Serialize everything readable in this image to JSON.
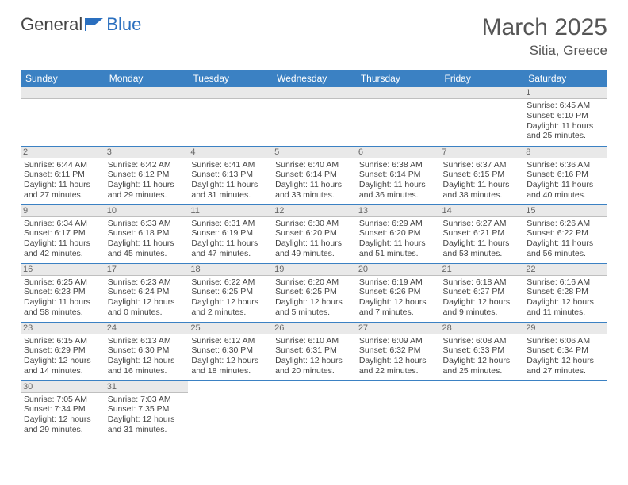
{
  "brand": {
    "name_part1": "General",
    "name_part2": "Blue"
  },
  "title": "March 2025",
  "location": "Sitia, Greece",
  "colors": {
    "header_bg": "#3b81c3",
    "header_text": "#ffffff",
    "daynum_bg": "#e9e9e9",
    "border": "#3b81c3",
    "text": "#444444"
  },
  "weekdays": [
    "Sunday",
    "Monday",
    "Tuesday",
    "Wednesday",
    "Thursday",
    "Friday",
    "Saturday"
  ],
  "rows": [
    [
      null,
      null,
      null,
      null,
      null,
      null,
      {
        "n": "1",
        "sr": "Sunrise: 6:45 AM",
        "ss": "Sunset: 6:10 PM",
        "d1": "Daylight: 11 hours",
        "d2": "and 25 minutes."
      }
    ],
    [
      {
        "n": "2",
        "sr": "Sunrise: 6:44 AM",
        "ss": "Sunset: 6:11 PM",
        "d1": "Daylight: 11 hours",
        "d2": "and 27 minutes."
      },
      {
        "n": "3",
        "sr": "Sunrise: 6:42 AM",
        "ss": "Sunset: 6:12 PM",
        "d1": "Daylight: 11 hours",
        "d2": "and 29 minutes."
      },
      {
        "n": "4",
        "sr": "Sunrise: 6:41 AM",
        "ss": "Sunset: 6:13 PM",
        "d1": "Daylight: 11 hours",
        "d2": "and 31 minutes."
      },
      {
        "n": "5",
        "sr": "Sunrise: 6:40 AM",
        "ss": "Sunset: 6:14 PM",
        "d1": "Daylight: 11 hours",
        "d2": "and 33 minutes."
      },
      {
        "n": "6",
        "sr": "Sunrise: 6:38 AM",
        "ss": "Sunset: 6:14 PM",
        "d1": "Daylight: 11 hours",
        "d2": "and 36 minutes."
      },
      {
        "n": "7",
        "sr": "Sunrise: 6:37 AM",
        "ss": "Sunset: 6:15 PM",
        "d1": "Daylight: 11 hours",
        "d2": "and 38 minutes."
      },
      {
        "n": "8",
        "sr": "Sunrise: 6:36 AM",
        "ss": "Sunset: 6:16 PM",
        "d1": "Daylight: 11 hours",
        "d2": "and 40 minutes."
      }
    ],
    [
      {
        "n": "9",
        "sr": "Sunrise: 6:34 AM",
        "ss": "Sunset: 6:17 PM",
        "d1": "Daylight: 11 hours",
        "d2": "and 42 minutes."
      },
      {
        "n": "10",
        "sr": "Sunrise: 6:33 AM",
        "ss": "Sunset: 6:18 PM",
        "d1": "Daylight: 11 hours",
        "d2": "and 45 minutes."
      },
      {
        "n": "11",
        "sr": "Sunrise: 6:31 AM",
        "ss": "Sunset: 6:19 PM",
        "d1": "Daylight: 11 hours",
        "d2": "and 47 minutes."
      },
      {
        "n": "12",
        "sr": "Sunrise: 6:30 AM",
        "ss": "Sunset: 6:20 PM",
        "d1": "Daylight: 11 hours",
        "d2": "and 49 minutes."
      },
      {
        "n": "13",
        "sr": "Sunrise: 6:29 AM",
        "ss": "Sunset: 6:20 PM",
        "d1": "Daylight: 11 hours",
        "d2": "and 51 minutes."
      },
      {
        "n": "14",
        "sr": "Sunrise: 6:27 AM",
        "ss": "Sunset: 6:21 PM",
        "d1": "Daylight: 11 hours",
        "d2": "and 53 minutes."
      },
      {
        "n": "15",
        "sr": "Sunrise: 6:26 AM",
        "ss": "Sunset: 6:22 PM",
        "d1": "Daylight: 11 hours",
        "d2": "and 56 minutes."
      }
    ],
    [
      {
        "n": "16",
        "sr": "Sunrise: 6:25 AM",
        "ss": "Sunset: 6:23 PM",
        "d1": "Daylight: 11 hours",
        "d2": "and 58 minutes."
      },
      {
        "n": "17",
        "sr": "Sunrise: 6:23 AM",
        "ss": "Sunset: 6:24 PM",
        "d1": "Daylight: 12 hours",
        "d2": "and 0 minutes."
      },
      {
        "n": "18",
        "sr": "Sunrise: 6:22 AM",
        "ss": "Sunset: 6:25 PM",
        "d1": "Daylight: 12 hours",
        "d2": "and 2 minutes."
      },
      {
        "n": "19",
        "sr": "Sunrise: 6:20 AM",
        "ss": "Sunset: 6:25 PM",
        "d1": "Daylight: 12 hours",
        "d2": "and 5 minutes."
      },
      {
        "n": "20",
        "sr": "Sunrise: 6:19 AM",
        "ss": "Sunset: 6:26 PM",
        "d1": "Daylight: 12 hours",
        "d2": "and 7 minutes."
      },
      {
        "n": "21",
        "sr": "Sunrise: 6:18 AM",
        "ss": "Sunset: 6:27 PM",
        "d1": "Daylight: 12 hours",
        "d2": "and 9 minutes."
      },
      {
        "n": "22",
        "sr": "Sunrise: 6:16 AM",
        "ss": "Sunset: 6:28 PM",
        "d1": "Daylight: 12 hours",
        "d2": "and 11 minutes."
      }
    ],
    [
      {
        "n": "23",
        "sr": "Sunrise: 6:15 AM",
        "ss": "Sunset: 6:29 PM",
        "d1": "Daylight: 12 hours",
        "d2": "and 14 minutes."
      },
      {
        "n": "24",
        "sr": "Sunrise: 6:13 AM",
        "ss": "Sunset: 6:30 PM",
        "d1": "Daylight: 12 hours",
        "d2": "and 16 minutes."
      },
      {
        "n": "25",
        "sr": "Sunrise: 6:12 AM",
        "ss": "Sunset: 6:30 PM",
        "d1": "Daylight: 12 hours",
        "d2": "and 18 minutes."
      },
      {
        "n": "26",
        "sr": "Sunrise: 6:10 AM",
        "ss": "Sunset: 6:31 PM",
        "d1": "Daylight: 12 hours",
        "d2": "and 20 minutes."
      },
      {
        "n": "27",
        "sr": "Sunrise: 6:09 AM",
        "ss": "Sunset: 6:32 PM",
        "d1": "Daylight: 12 hours",
        "d2": "and 22 minutes."
      },
      {
        "n": "28",
        "sr": "Sunrise: 6:08 AM",
        "ss": "Sunset: 6:33 PM",
        "d1": "Daylight: 12 hours",
        "d2": "and 25 minutes."
      },
      {
        "n": "29",
        "sr": "Sunrise: 6:06 AM",
        "ss": "Sunset: 6:34 PM",
        "d1": "Daylight: 12 hours",
        "d2": "and 27 minutes."
      }
    ],
    [
      {
        "n": "30",
        "sr": "Sunrise: 7:05 AM",
        "ss": "Sunset: 7:34 PM",
        "d1": "Daylight: 12 hours",
        "d2": "and 29 minutes."
      },
      {
        "n": "31",
        "sr": "Sunrise: 7:03 AM",
        "ss": "Sunset: 7:35 PM",
        "d1": "Daylight: 12 hours",
        "d2": "and 31 minutes."
      },
      null,
      null,
      null,
      null,
      null
    ]
  ]
}
